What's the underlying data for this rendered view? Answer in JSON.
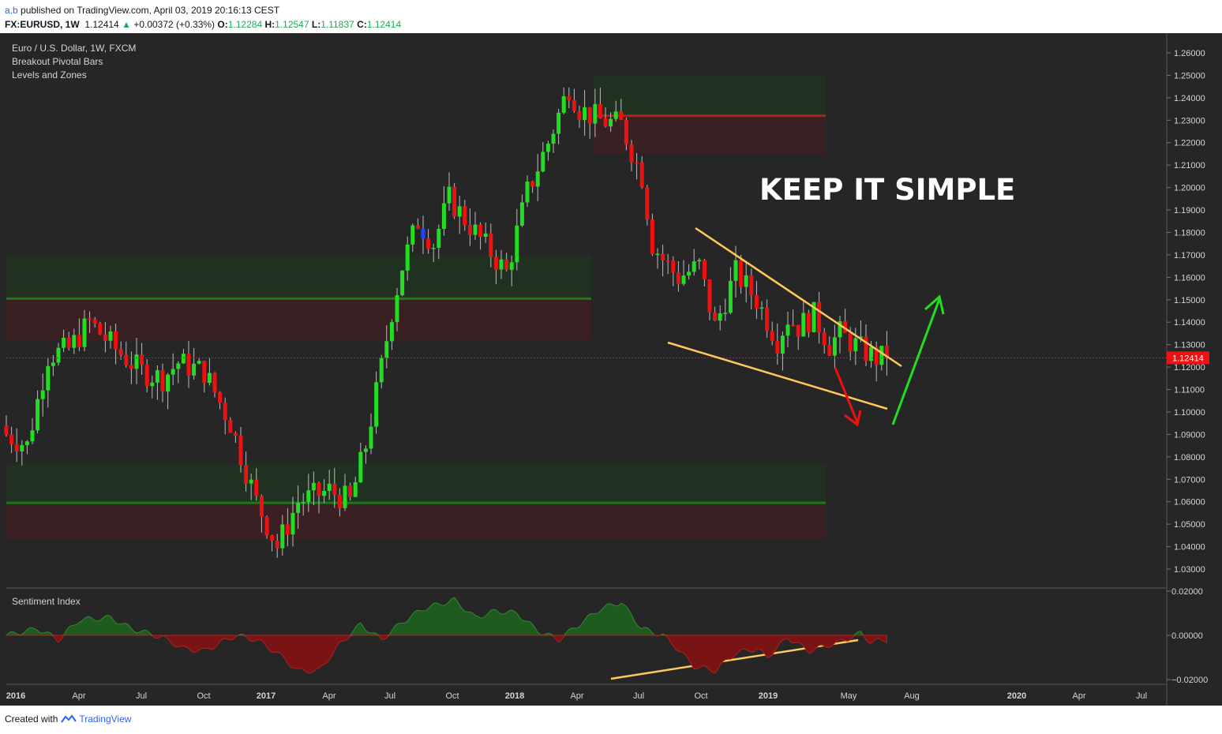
{
  "header": {
    "author": "a.b",
    "published_text": "published on TradingView.com, April 03, 2019 20:16:13 CEST",
    "symbol": "FX:EURUSD, 1W",
    "last": "1.12414",
    "change": "+0.00372 (+0.33%)",
    "open_label": "O:",
    "open": "1.12284",
    "high_label": "H:",
    "high": "1.12547",
    "low_label": "L:",
    "low": "1.11837",
    "close_label": "C:",
    "close": "1.12414"
  },
  "legend": {
    "title": "Euro / U.S. Dollar, 1W, FXCM",
    "indicator_1": "Breakout Pivotal Bars",
    "indicator_2": "Levels and Zones",
    "sentiment": "Sentiment Index"
  },
  "annotation_text": "KEEP IT SIMPLE",
  "price_label": "1.12414",
  "footer": {
    "created_with": "Created with",
    "brand": "TradingView"
  },
  "colors": {
    "background": "#262626",
    "bull": "#22dd22",
    "bear": "#ee1111",
    "level_red": "#b71c1c",
    "level_green": "#1b7a1b",
    "trendline": "#ffc85a",
    "arrow_up": "#22dd22",
    "arrow_down": "#ee1111"
  },
  "chart_data": {
    "type": "candlestick",
    "title": "Euro / U.S. Dollar, 1W, FXCM",
    "ylim": [
      1.025,
      1.265
    ],
    "y_ticks": [
      "1.26000",
      "1.25000",
      "1.24000",
      "1.23000",
      "1.22000",
      "1.21000",
      "1.20000",
      "1.19000",
      "1.18000",
      "1.17000",
      "1.16000",
      "1.15000",
      "1.14000",
      "1.13000",
      "1.12000",
      "1.11000",
      "1.10000",
      "1.09000",
      "1.08000",
      "1.07000",
      "1.06000",
      "1.05000",
      "1.04000",
      "1.03000"
    ],
    "x_ticks": [
      "2016",
      "Apr",
      "Jul",
      "Oct",
      "2017",
      "Apr",
      "Jul",
      "Oct",
      "2018",
      "Apr",
      "Jul",
      "Oct",
      "2019",
      "May",
      "Aug",
      "2020",
      "Apr",
      "Jul"
    ],
    "candle_anchors": {
      "weeks": [
        0,
        4,
        8,
        12,
        16,
        21,
        26,
        30,
        33,
        38,
        43,
        48,
        52,
        56,
        62,
        66,
        69,
        72,
        74,
        76,
        79,
        82,
        85,
        90,
        96,
        100,
        104,
        108,
        110,
        114,
        118,
        122,
        124,
        126,
        129,
        133,
        136,
        140,
        144,
        148,
        150,
        152,
        155,
        158,
        160,
        164,
        167,
        169
      ],
      "close": [
        1.09,
        1.085,
        1.125,
        1.128,
        1.14,
        1.128,
        1.118,
        1.115,
        1.122,
        1.118,
        1.095,
        1.06,
        1.04,
        1.06,
        1.065,
        1.06,
        1.085,
        1.12,
        1.145,
        1.165,
        1.185,
        1.175,
        1.195,
        1.18,
        1.162,
        1.198,
        1.22,
        1.245,
        1.235,
        1.23,
        1.228,
        1.205,
        1.175,
        1.168,
        1.16,
        1.165,
        1.138,
        1.162,
        1.15,
        1.132,
        1.142,
        1.138,
        1.143,
        1.13,
        1.135,
        1.128,
        1.124,
        1.12414
      ]
    },
    "levels": [
      {
        "price": 1.232,
        "color": "red",
        "zone": [
          1.215,
          1.25
        ]
      },
      {
        "price": 1.1505,
        "color": "red",
        "zone": [
          1.132,
          1.17
        ]
      },
      {
        "price": 1.1505,
        "color": "green"
      },
      {
        "price": 1.0595,
        "color": "green",
        "zone": [
          1.043,
          1.077
        ]
      }
    ],
    "sentiment": {
      "name": "Sentiment Index",
      "ylim": [
        -0.021,
        0.021
      ],
      "y_ticks": [
        "0.02000",
        "0.00000",
        "−0.02000"
      ]
    }
  }
}
